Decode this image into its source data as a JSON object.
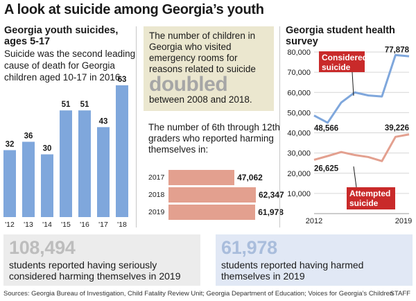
{
  "title": "A look at suicide among Georgia’s youth",
  "panel1": {
    "title": "Georgia youth suicides, ages 5-17",
    "description": "Suicide was the second leading cause of death for Georgia children aged 10-17 in 2016."
  },
  "panel2": {
    "er_text_before": "The number of children in Georgia who visited emergency rooms for reasons related to suicide",
    "er_emphasis": "doubled",
    "er_text_after": "between 2008 and 2018.",
    "harm_desc": "The number of 6th through 12th graders who reported harming themselves in:",
    "harm_rows": [
      {
        "year": "2017",
        "value": 47062,
        "value_label": "47,062"
      },
      {
        "year": "2018",
        "value": 62347,
        "value_label": "62,347"
      },
      {
        "year": "2019",
        "value": 61978,
        "value_label": "61,978"
      }
    ]
  },
  "panel3": {
    "title": "Georgia student health survey",
    "considered_label": "Considered suicide",
    "attempted_label": "Attempted suicide",
    "considered_start": "48,566",
    "considered_end": "77,878",
    "attempted_start": "26,625",
    "attempted_end": "39,226"
  },
  "bottom_left": {
    "number": "108,494",
    "text": "students reported having seriously considered harming themselves in 2019"
  },
  "bottom_right": {
    "number": "61,978",
    "text": "students reported having harmed themselves in 2019"
  },
  "sources": "Sources: Georgia Bureau of Investigation, Child Fatality Review Unit; Georgia Department of Education; Voices for Georgia’s Children",
  "credit": "STAFF",
  "colors": {
    "blue_bar": "#7fa7dc",
    "salmon_bar": "#e3a08f",
    "blue_line": "#7fa7dc",
    "salmon_line": "#e3a08f",
    "label_box": "#c92a2a"
  },
  "chart_data": [
    {
      "type": "bar",
      "categories": [
        "'12",
        "'13",
        "'14",
        "'15",
        "'16",
        "'17",
        "'18"
      ],
      "values": [
        32,
        36,
        30,
        51,
        51,
        43,
        63
      ],
      "title": "Georgia youth suicides, ages 5-17",
      "ylim": [
        0,
        63
      ]
    },
    {
      "type": "bar",
      "orientation": "horizontal",
      "categories": [
        "2017",
        "2018",
        "2019"
      ],
      "values": [
        47062,
        62347,
        61978
      ],
      "title": "The number of 6th through 12th graders who reported harming themselves in:"
    },
    {
      "type": "line",
      "title": "Georgia student health survey",
      "xlim": [
        2012,
        2019
      ],
      "x_ticks": [
        "2012",
        "2019"
      ],
      "ylim": [
        0,
        80000
      ],
      "y_ticks": [
        "10,000",
        "20,000",
        "30,000",
        "40,000",
        "50,000",
        "60,000",
        "70,000",
        "80,000"
      ],
      "grid": true,
      "series": [
        {
          "name": "Considered suicide",
          "x": [
            2012,
            2013,
            2014,
            2015,
            2016,
            2017,
            2018,
            2019
          ],
          "values": [
            48566,
            45000,
            55000,
            60000,
            58500,
            58000,
            78500,
            77878
          ]
        },
        {
          "name": "Attempted suicide",
          "x": [
            2012,
            2013,
            2014,
            2015,
            2016,
            2017,
            2018,
            2019
          ],
          "values": [
            26625,
            28500,
            30500,
            29000,
            28000,
            26000,
            38000,
            39226
          ]
        }
      ]
    }
  ]
}
